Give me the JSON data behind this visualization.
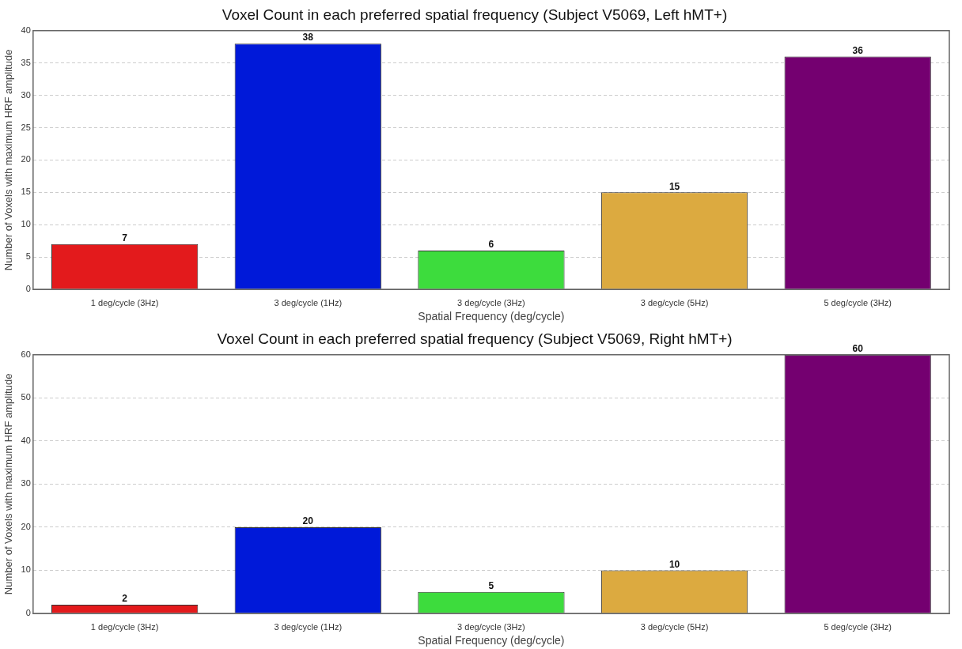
{
  "chart_data": [
    {
      "type": "bar",
      "title": "Voxel Count in each preferred spatial frequency (Subject V5069, Left hMT+)",
      "xlabel": "Spatial Frequency (deg/cycle)",
      "ylabel": "Number of Voxels with maximum HRF amplitude",
      "categories": [
        "1 deg/cycle (3Hz)",
        "3 deg/cycle (1Hz)",
        "3 deg/cycle (3Hz)",
        "3 deg/cycle (5Hz)",
        "5 deg/cycle (3Hz)"
      ],
      "values": [
        7,
        38,
        6,
        15,
        36
      ],
      "colors": [
        "#e31a1c",
        "#0019d9",
        "#3ddc3d",
        "#dcaa40",
        "#740070"
      ],
      "ylim": [
        0,
        40
      ],
      "yticks": [
        0,
        5,
        10,
        15,
        20,
        25,
        30,
        35,
        40
      ],
      "grid": "y",
      "legend": false,
      "data_labels": true
    },
    {
      "type": "bar",
      "title": "Voxel Count in each preferred spatial frequency (Subject V5069, Right hMT+)",
      "xlabel": "Spatial Frequency (deg/cycle)",
      "ylabel": "Number of Voxels with maximum HRF amplitude",
      "categories": [
        "1 deg/cycle (3Hz)",
        "3 deg/cycle (1Hz)",
        "3 deg/cycle (3Hz)",
        "3 deg/cycle (5Hz)",
        "5 deg/cycle (3Hz)"
      ],
      "values": [
        2,
        20,
        5,
        10,
        60
      ],
      "colors": [
        "#e31a1c",
        "#0019d9",
        "#3ddc3d",
        "#dcaa40",
        "#740070"
      ],
      "ylim": [
        0,
        60
      ],
      "yticks": [
        0,
        10,
        20,
        30,
        40,
        50,
        60
      ],
      "grid": "y",
      "legend": false,
      "data_labels": true
    }
  ]
}
